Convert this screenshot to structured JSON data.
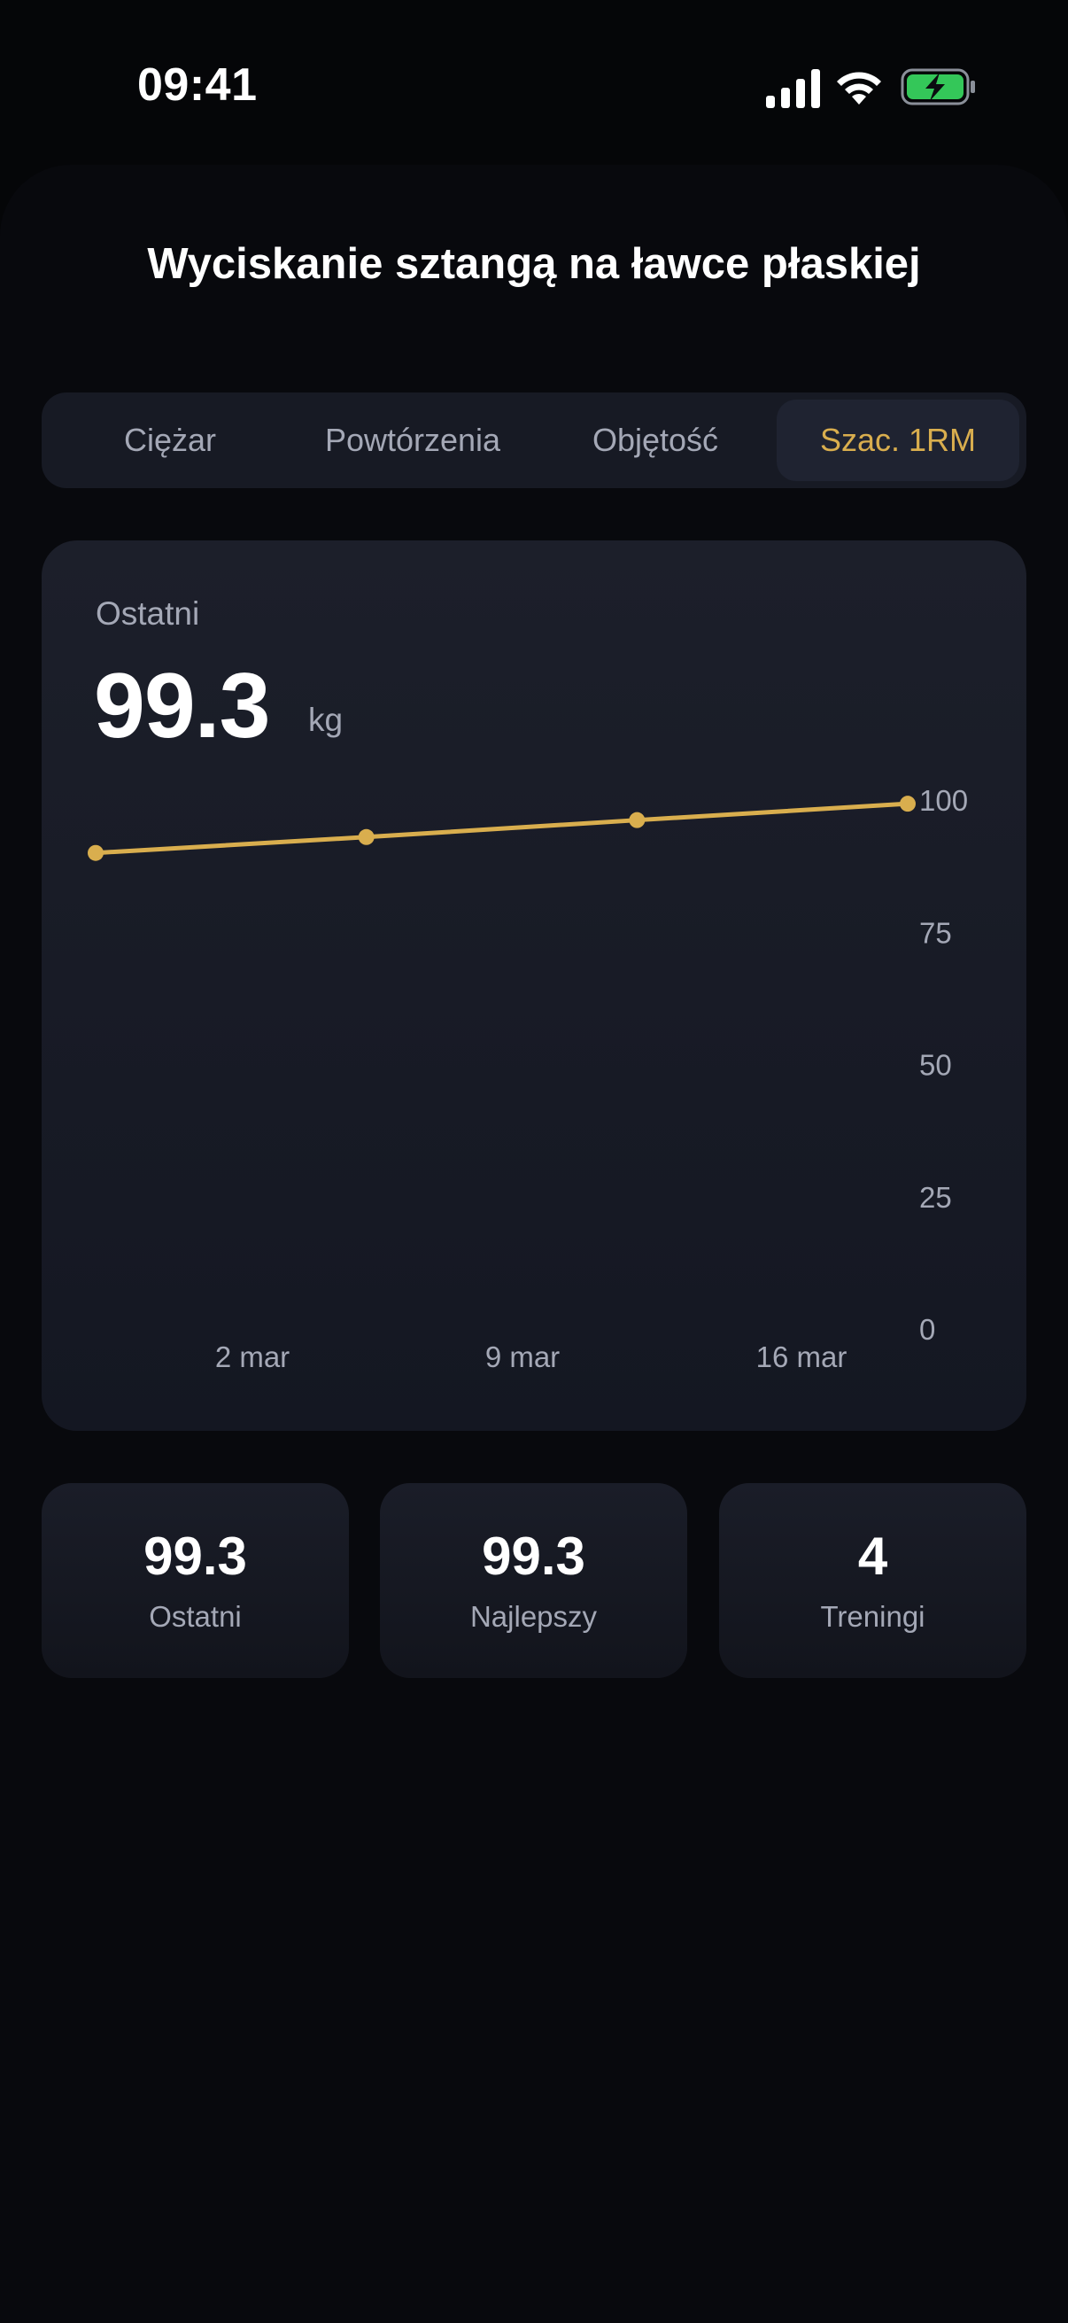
{
  "status_bar": {
    "time": "09:41",
    "icons": [
      "cellular-signal-icon",
      "wifi-icon",
      "battery-charging-icon"
    ]
  },
  "header": {
    "title": "Wyciskanie sztangą na ławce płaskiej"
  },
  "tabs": [
    {
      "label": "Ciężar",
      "active": false
    },
    {
      "label": "Powtórzenia",
      "active": false
    },
    {
      "label": "Objętość",
      "active": false
    },
    {
      "label": "Szac. 1RM",
      "active": true
    }
  ],
  "summary": {
    "label": "Ostatni",
    "value": "99.3",
    "unit": "kg"
  },
  "chart_data": {
    "type": "line",
    "x": [
      "2026-02-23",
      "2026-03-02",
      "2026-03-09",
      "2026-03-16"
    ],
    "values": [
      90,
      93,
      96.2,
      99.3
    ],
    "xticks": [
      "2 mar",
      "9 mar",
      "16 mar"
    ],
    "yticks": [
      0,
      25,
      50,
      75,
      100
    ],
    "ylim": [
      0,
      100
    ],
    "grid": false,
    "color": "#d9ae4e"
  },
  "stats": [
    {
      "value": "99.3",
      "label": "Ostatni"
    },
    {
      "value": "99.3",
      "label": "Najlepszy"
    },
    {
      "value": "4",
      "label": "Treningi"
    }
  ],
  "colors": {
    "accent": "#d9ae4e",
    "background": "#050608",
    "card": "#1c1f2a",
    "muted_text": "#a4a8b6",
    "battery": "#34c759"
  }
}
